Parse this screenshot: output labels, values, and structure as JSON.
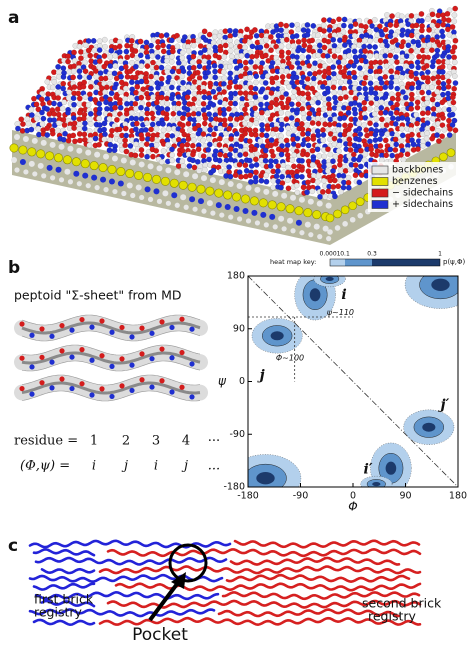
{
  "panels": {
    "a": {
      "label": "a",
      "legend": [
        {
          "name": "backbones",
          "color": "#e6e6e6"
        },
        {
          "name": "benzenes",
          "color": "#e2e000"
        },
        {
          "name": "− sidechains",
          "color": "#d41c1c"
        },
        {
          "name": "+ sidechains",
          "color": "#1f2fd0"
        }
      ]
    },
    "b": {
      "label": "b",
      "caption": "peptoid \"Σ-sheet\" from MD",
      "residue_row": {
        "label": "residue =",
        "items": [
          "1",
          "2",
          "3",
          "4",
          "···"
        ]
      },
      "angle_row": {
        "label": "(Φ,ψ) =",
        "items": [
          "i",
          "j",
          "i",
          "j",
          "..."
        ]
      },
      "plot": {
        "xlabel": "Φ",
        "ylabel": "ψ",
        "xlim": [
          -180,
          180
        ],
        "ylim": [
          -180,
          180
        ],
        "xticks": [
          -180,
          -90,
          0,
          90,
          180
        ],
        "yticks": [
          -180,
          -90,
          0,
          90,
          180
        ],
        "key_title": "heat map key:",
        "key_ticks": [
          "0.0001",
          "0.1",
          "0.3",
          "1"
        ],
        "key_label": "p(ψ,Φ)",
        "regions": [
          "i",
          "j",
          "j′",
          "i′"
        ],
        "annotations": [
          "ψ~110",
          "Φ~100"
        ]
      }
    },
    "c": {
      "label": "c",
      "blue_label": [
        "first brick",
        "registry"
      ],
      "red_label": [
        "second brick",
        "registry"
      ],
      "pocket": "Pocket"
    }
  }
}
